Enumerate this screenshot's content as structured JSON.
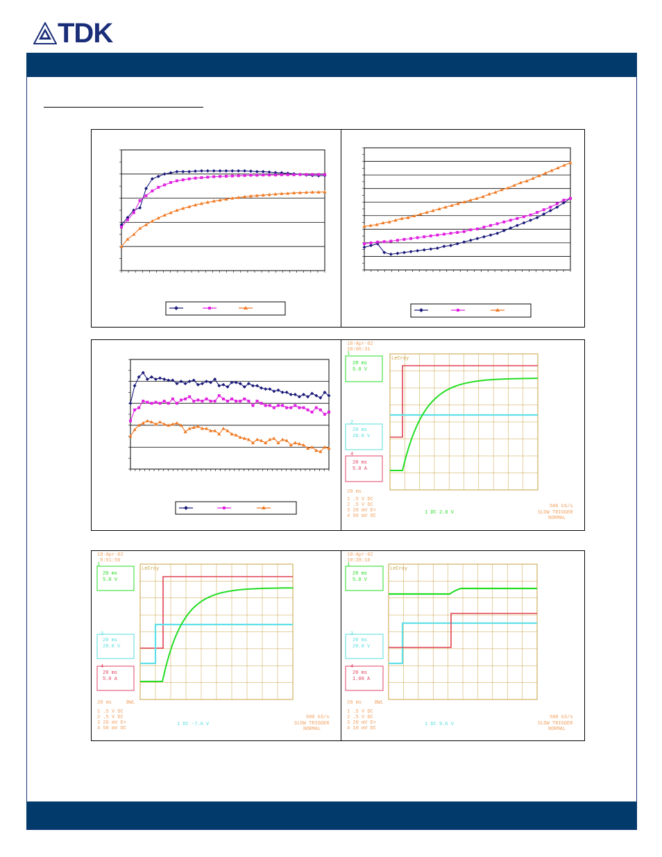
{
  "brand": {
    "name": "TDK"
  },
  "colors": {
    "band": "#023a6b",
    "series1": "#1a1a7a",
    "series2": "#e020e0",
    "series3": "#f07820"
  },
  "chart_data": [
    {
      "type": "line",
      "series": [
        {
          "values": [
            59,
            62,
            65,
            66,
            74,
            78,
            79,
            80,
            80.5,
            81,
            81,
            81,
            81.2,
            81.3,
            81.3,
            81.3,
            81.3,
            81.3,
            81.3,
            81.3,
            81.3,
            81.2,
            81,
            81,
            80.8,
            80.6,
            80.5,
            80.3,
            80.1,
            79.8,
            79.6,
            79.4,
            79.3,
            79.4
          ]
        },
        {
          "values": [
            58,
            61,
            64,
            69,
            71,
            73,
            74.5,
            75.5,
            76.5,
            77.2,
            77.6,
            78,
            78.3,
            78.5,
            78.7,
            78.9,
            79,
            79.1,
            79.2,
            79.3,
            79.4,
            79.5,
            79.5,
            79.6,
            79.6,
            79.6,
            79.7,
            79.7,
            79.7,
            79.8,
            79.8,
            79.8,
            79.8,
            79.8
          ]
        },
        {
          "values": [
            50,
            53,
            55,
            57.5,
            59,
            60.5,
            61.8,
            63,
            64,
            65,
            65.8,
            66.5,
            67.2,
            67.8,
            68.3,
            68.8,
            69.2,
            69.6,
            70,
            70.3,
            70.6,
            70.9,
            71.1,
            71.3,
            71.5,
            71.7,
            71.9,
            72,
            72.2,
            72.3,
            72.4,
            72.5,
            72.5,
            72.6
          ]
        }
      ]
    },
    {
      "type": "line",
      "series": [
        {
          "values": [
            3.3,
            3.4,
            3.5,
            3.0,
            2.9,
            2.95,
            3.0,
            3.05,
            3.1,
            3.15,
            3.2,
            3.25,
            3.35,
            3.4,
            3.5,
            3.6,
            3.7,
            3.8,
            3.9,
            4.0,
            4.1,
            4.25,
            4.4,
            4.55,
            4.7,
            4.85,
            5.0,
            5.2,
            5.4,
            5.6,
            5.85,
            6.1
          ]
        },
        {
          "values": [
            3.5,
            3.55,
            3.6,
            3.62,
            3.65,
            3.7,
            3.75,
            3.8,
            3.85,
            3.9,
            3.95,
            4.0,
            4.05,
            4.1,
            4.15,
            4.2,
            4.3,
            4.35,
            4.45,
            4.55,
            4.65,
            4.75,
            4.85,
            4.95,
            5.05,
            5.15,
            5.3,
            5.45,
            5.6,
            5.8,
            6.0,
            6.1
          ]
        },
        {
          "values": [
            4.5,
            4.55,
            4.6,
            4.7,
            4.75,
            4.85,
            4.95,
            5.0,
            5.1,
            5.2,
            5.3,
            5.4,
            5.5,
            5.6,
            5.7,
            5.8,
            5.9,
            6.0,
            6.1,
            6.2,
            6.35,
            6.45,
            6.6,
            6.7,
            6.85,
            7.0,
            7.1,
            7.25,
            7.4,
            7.55,
            7.7,
            7.85,
            8.0,
            8.15
          ]
        }
      ]
    },
    {
      "type": "line",
      "series": [
        {
          "values": [
            4.0,
            4.8,
            5.2,
            5.4,
            5.1,
            5.2,
            5.1,
            5.15,
            5.1,
            5.05,
            5.05,
            4.9,
            5.0,
            4.9,
            5.0,
            5.05,
            4.85,
            4.9,
            5.0,
            4.95,
            5.1,
            4.8,
            4.85,
            4.75,
            4.95,
            4.95,
            4.9,
            4.75,
            4.9,
            4.8,
            4.8,
            4.7,
            4.65,
            4.65,
            4.55,
            4.6,
            4.5,
            4.5,
            4.4,
            4.4,
            4.3,
            4.4,
            4.3,
            4.45,
            4.35,
            4.25,
            4.5,
            4.35
          ]
        },
        {
          "values": [
            3.2,
            3.7,
            3.8,
            4.1,
            4.05,
            4.0,
            4.05,
            4.0,
            4.1,
            4.0,
            4.2,
            4.0,
            4.15,
            4.2,
            4.3,
            4.1,
            4.15,
            4.1,
            4.2,
            4.1,
            4.1,
            4.35,
            4.2,
            4.1,
            4.2,
            4.1,
            4.1,
            4.2,
            4.1,
            3.9,
            4.1,
            4.0,
            3.9,
            3.9,
            3.8,
            3.9,
            3.9,
            3.8,
            3.8,
            3.9,
            3.8,
            3.8,
            3.7,
            3.6,
            3.8,
            3.7,
            3.5,
            3.6
          ]
        },
        {
          "values": [
            2.5,
            2.8,
            3.0,
            3.1,
            3.2,
            3.15,
            3.05,
            3.15,
            3.05,
            3.0,
            3.05,
            3.1,
            3.0,
            2.7,
            2.85,
            2.9,
            2.95,
            2.85,
            2.85,
            2.75,
            2.75,
            2.6,
            2.85,
            2.75,
            2.6,
            2.55,
            2.45,
            2.4,
            2.35,
            2.2,
            2.35,
            2.3,
            2.2,
            2.35,
            2.4,
            2.2,
            2.35,
            2.3,
            2.1,
            2.2,
            2.15,
            2.1,
            1.95,
            2.0,
            1.85,
            1.8,
            2.0,
            1.95
          ]
        }
      ]
    }
  ],
  "scope1": {
    "date": "18-Apr-02",
    "time": "10:06:31",
    "brand": "LeCroy",
    "ch1": [
      "20 ms",
      "5.0 V"
    ],
    "ch2": [
      "20 ms",
      "20.0 V"
    ],
    "ch4": [
      "20 ms",
      "5.0 A"
    ],
    "timebase": "20 ms",
    "channels": [
      "1  .5  V  DC",
      "2  .5  V  DC",
      "3  20 mV  E×",
      "4  50 mV  DC"
    ],
    "trigger": "1  DC 2.6 V",
    "rate": "500 kS/s",
    "mode": "SLOW TRIGGER",
    "norm": "NORMAL"
  },
  "scope2": {
    "date": "18-Apr-02",
    "time": "9:51:56",
    "brand": "LeCroy",
    "ch1": [
      "20 ms",
      "5.0 V"
    ],
    "ch2": [
      "20 ms",
      "20.0 V"
    ],
    "ch4": [
      "20 ms",
      "5.0 A"
    ],
    "timebase": "20 ms",
    "bwl": "BWL",
    "channels": [
      "1  .5  V  DC",
      "2  .5  V  DC",
      "3  20 mV  E×",
      "4  50 mV  DC"
    ],
    "trigger": "1  DC -7.6 V",
    "rate": "500 kS/s",
    "mode": "SLOW TRIGGER",
    "norm": "NORMAL"
  },
  "scope3": {
    "date": "18-Apr-02",
    "time": "10:28:16",
    "brand": "LeCroy",
    "ch1": [
      "20 ms",
      "5.0 V"
    ],
    "ch2": [
      "20 ms",
      "20.0 V"
    ],
    "ch4": [
      "20 ms",
      "1.00 A"
    ],
    "timebase": "20 ms",
    "bwl": "BWL",
    "channels": [
      "1  .5  V  DC",
      "2  .5  V  DC",
      "3  20 mV  E×",
      "4  10 mV  DC"
    ],
    "trigger": "1  DC 9.6 V",
    "rate": "500 kS/s",
    "mode": "SLOW TRIGGER",
    "norm": "NORMAL"
  }
}
